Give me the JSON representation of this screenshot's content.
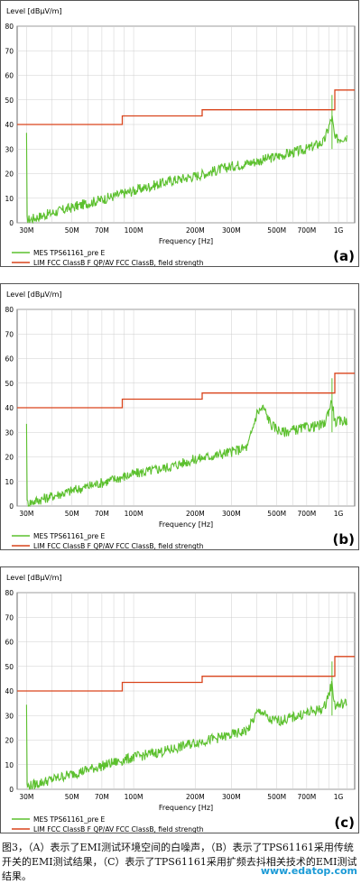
{
  "colors": {
    "measurement": "#5cc02e",
    "limit": "#d9441c",
    "grid": "#cfcfcf"
  },
  "chart_data": [
    {
      "type": "line",
      "panel_label": "(a)",
      "ylabel": "Level [dBµV/m]",
      "xlabel": "Frequency [Hz]",
      "x_scale": "log",
      "xlim": [
        27,
        1200
      ],
      "ylim": [
        0,
        80
      ],
      "grid": true,
      "yticks": [
        0,
        10,
        20,
        30,
        40,
        50,
        60,
        70,
        80
      ],
      "xticks": [
        {
          "v": 30,
          "label": "30M"
        },
        {
          "v": 50,
          "label": "50M"
        },
        {
          "v": 70,
          "label": "70M"
        },
        {
          "v": 100,
          "label": "100M"
        },
        {
          "v": 200,
          "label": "200M"
        },
        {
          "v": 300,
          "label": "300M"
        },
        {
          "v": 500,
          "label": "500M"
        },
        {
          "v": 700,
          "label": "700M"
        },
        {
          "v": 1000,
          "label": "1G"
        }
      ],
      "series": [
        {
          "name": "MES  TPS61161_pre E",
          "points": [
            [
              30,
              1
            ],
            [
              40,
              4
            ],
            [
              60,
              8
            ],
            [
              100,
              13
            ],
            [
              150,
              17
            ],
            [
              200,
              19
            ],
            [
              300,
              23
            ],
            [
              400,
              25
            ],
            [
              500,
              27
            ],
            [
              700,
              30
            ],
            [
              850,
              33
            ],
            [
              930,
              43
            ],
            [
              960,
              34
            ],
            [
              1100,
              35
            ]
          ]
        },
        {
          "name": "LIM  FCC ClassB F QP/AV    FCC ClassB, field strength",
          "points": [
            [
              27,
              40
            ],
            [
              88,
              40
            ],
            [
              88,
              43.5
            ],
            [
              216,
              43.5
            ],
            [
              216,
              46
            ],
            [
              960,
              46
            ],
            [
              960,
              54
            ],
            [
              1200,
              54
            ]
          ]
        }
      ]
    },
    {
      "type": "line",
      "panel_label": "(b)",
      "ylabel": "Level [dBµV/m]",
      "xlabel": "Frequency [Hz]",
      "x_scale": "log",
      "xlim": [
        27,
        1200
      ],
      "ylim": [
        0,
        80
      ],
      "grid": true,
      "yticks": [
        0,
        10,
        20,
        30,
        40,
        50,
        60,
        70,
        80
      ],
      "xticks": [
        {
          "v": 30,
          "label": "30M"
        },
        {
          "v": 50,
          "label": "50M"
        },
        {
          "v": 70,
          "label": "70M"
        },
        {
          "v": 100,
          "label": "100M"
        },
        {
          "v": 200,
          "label": "200M"
        },
        {
          "v": 300,
          "label": "300M"
        },
        {
          "v": 500,
          "label": "500M"
        },
        {
          "v": 700,
          "label": "700M"
        },
        {
          "v": 1000,
          "label": "1G"
        }
      ],
      "series": [
        {
          "name": "MES  TPS61161_pre E",
          "points": [
            [
              30,
              1
            ],
            [
              40,
              4
            ],
            [
              60,
              8
            ],
            [
              100,
              13
            ],
            [
              150,
              16
            ],
            [
              200,
              19
            ],
            [
              300,
              22
            ],
            [
              360,
              24
            ],
            [
              400,
              38
            ],
            [
              430,
              40
            ],
            [
              470,
              33
            ],
            [
              530,
              30
            ],
            [
              700,
              32
            ],
            [
              850,
              33
            ],
            [
              930,
              43
            ],
            [
              960,
              34
            ],
            [
              1100,
              35
            ]
          ]
        },
        {
          "name": "LIM  FCC ClassB F QP/AV    FCC ClassB, field strength",
          "points": [
            [
              27,
              40
            ],
            [
              88,
              40
            ],
            [
              88,
              43.5
            ],
            [
              216,
              43.5
            ],
            [
              216,
              46
            ],
            [
              960,
              46
            ],
            [
              960,
              54
            ],
            [
              1200,
              54
            ]
          ]
        }
      ]
    },
    {
      "type": "line",
      "panel_label": "(c)",
      "ylabel": "Level [dBµV/m]",
      "xlabel": "Frequency [Hz]",
      "x_scale": "log",
      "xlim": [
        27,
        1200
      ],
      "ylim": [
        0,
        80
      ],
      "grid": true,
      "yticks": [
        0,
        10,
        20,
        30,
        40,
        50,
        60,
        70,
        80
      ],
      "xticks": [
        {
          "v": 30,
          "label": "30M"
        },
        {
          "v": 50,
          "label": "50M"
        },
        {
          "v": 70,
          "label": "70M"
        },
        {
          "v": 100,
          "label": "100M"
        },
        {
          "v": 200,
          "label": "200M"
        },
        {
          "v": 300,
          "label": "300M"
        },
        {
          "v": 500,
          "label": "500M"
        },
        {
          "v": 700,
          "label": "700M"
        },
        {
          "v": 1000,
          "label": "1G"
        }
      ],
      "series": [
        {
          "name": "MES  TPS61161_pre E",
          "points": [
            [
              30,
              1
            ],
            [
              40,
              4
            ],
            [
              60,
              8
            ],
            [
              100,
              13
            ],
            [
              150,
              16
            ],
            [
              200,
              19
            ],
            [
              300,
              22
            ],
            [
              360,
              24
            ],
            [
              400,
              31
            ],
            [
              420,
              32
            ],
            [
              460,
              28
            ],
            [
              530,
              28
            ],
            [
              700,
              31
            ],
            [
              850,
              33
            ],
            [
              930,
              43
            ],
            [
              960,
              34
            ],
            [
              1100,
              35
            ]
          ]
        },
        {
          "name": "LIM  FCC ClassB F QP/AV    FCC ClassB, field strength",
          "points": [
            [
              27,
              40
            ],
            [
              88,
              40
            ],
            [
              88,
              43.5
            ],
            [
              216,
              43.5
            ],
            [
              216,
              46
            ],
            [
              960,
              46
            ],
            [
              960,
              54
            ],
            [
              1200,
              54
            ]
          ]
        }
      ]
    }
  ],
  "caption": "图3，（A）表示了EMI测试环境空间的白噪声，（B）表示了TPS61161采用传统开关的EMI测试结果，（C）表示了TPS61161采用扩频去抖相关技术的EMI测试结果。",
  "watermark": "www.edatop.com"
}
